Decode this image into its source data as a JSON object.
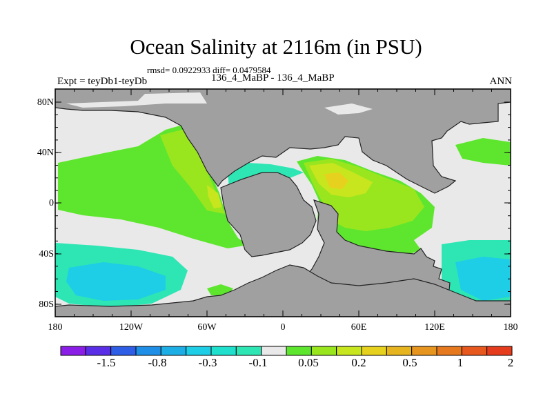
{
  "title": "Ocean Salinity at 2116m (in PSU)",
  "stats": "rmsd= 0.0922933 diff= 0.0479584",
  "left_label": "Expt = teyDb1-teyDb",
  "center_label": "136_4_MaBP - 136_4_MaBP",
  "right_label": "ANN",
  "lat_ticks": [
    "80N",
    "40N",
    "0",
    "40S",
    "80S"
  ],
  "lon_ticks": [
    "180",
    "120W",
    "60W",
    "0",
    "60E",
    "120E",
    "180"
  ],
  "colorbar": {
    "colors": [
      "#8a1ee6",
      "#5a2ee6",
      "#2e5ee6",
      "#1e8ee6",
      "#1eaee6",
      "#1ecde6",
      "#1ee0cc",
      "#2ee6b4",
      "#e9e9e9",
      "#5ee62e",
      "#9ae61e",
      "#c8e61e",
      "#e6d21e",
      "#e6b41e",
      "#e6961e",
      "#e6781e",
      "#e6581e",
      "#e63c1e"
    ],
    "labels": [
      "-1.5",
      "-0.8",
      "-0.3",
      "-0.1",
      "0.05",
      "0.2",
      "0.5",
      "1",
      "2"
    ]
  },
  "colors": {
    "land": "#a0a0a0",
    "near_zero": "#e9e9e9",
    "positive_low": "#5ee62e",
    "positive_mid": "#9ae61e",
    "positive_high": "#c8e61e",
    "negative_low": "#2ee6b4",
    "negative_mid": "#1ecde6"
  }
}
